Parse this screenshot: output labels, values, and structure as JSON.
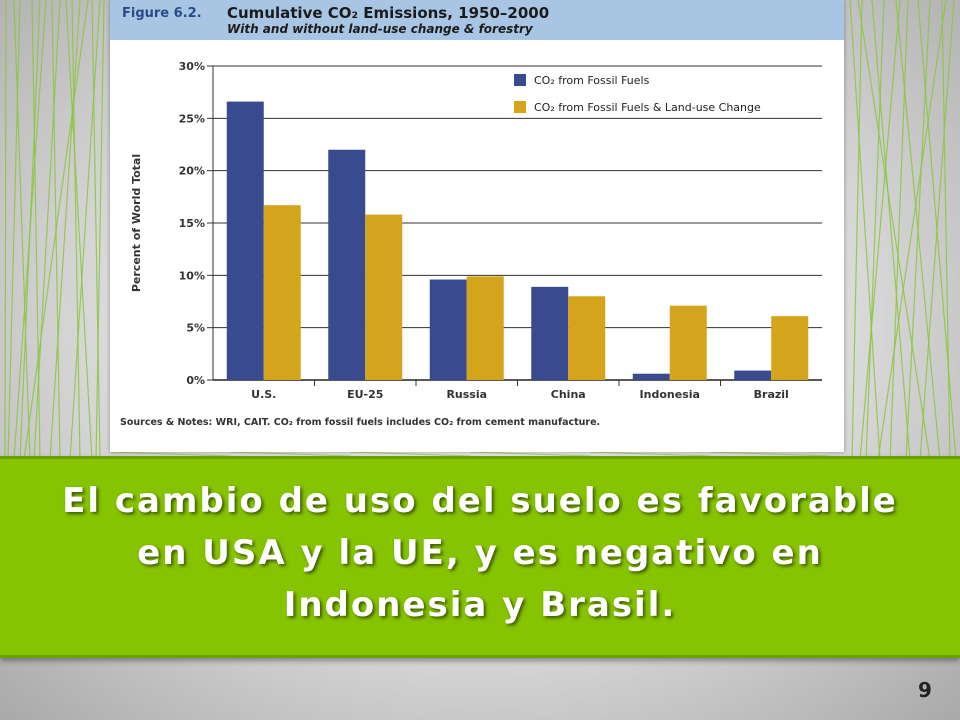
{
  "figure": {
    "number": "Figure 6.2.",
    "title": "Cumulative CO₂ Emissions, 1950–2000",
    "subtitle": "With and without land-use change & forestry",
    "note": "Sources & Notes: WRI, CAIT. CO₂ from fossil fuels includes CO₂ from cement manufacture."
  },
  "chart_data": {
    "type": "bar",
    "categories": [
      "U.S.",
      "EU-25",
      "Russia",
      "China",
      "Indonesia",
      "Brazil"
    ],
    "series": [
      {
        "name": "CO₂ from Fossil Fuels",
        "values": [
          26.6,
          22.0,
          9.6,
          8.9,
          0.6,
          0.9
        ]
      },
      {
        "name": "CO₂ from Fossil Fuels & Land-use Change",
        "values": [
          16.7,
          15.8,
          9.9,
          8.0,
          7.1,
          6.1
        ]
      }
    ],
    "ylabel": "Percent of World Total",
    "ylim": [
      0,
      30
    ],
    "yticks": [
      0,
      5,
      10,
      15,
      20,
      25,
      30
    ],
    "ytick_labels": [
      "0%",
      "5%",
      "10%",
      "15%",
      "20%",
      "25%",
      "30%"
    ],
    "grid": true,
    "legend_position": "top-right",
    "colors": {
      "fossil": "#3a4a8e",
      "landuse": "#d4a51c"
    }
  },
  "slide": {
    "caption": "El cambio de uso del suelo es favorable en USA y la UE, y es negativo en Indonesia y Brasil.",
    "page_number": "9"
  },
  "theme": {
    "band_color": "#86c300",
    "line_color": "#8cc63f"
  }
}
